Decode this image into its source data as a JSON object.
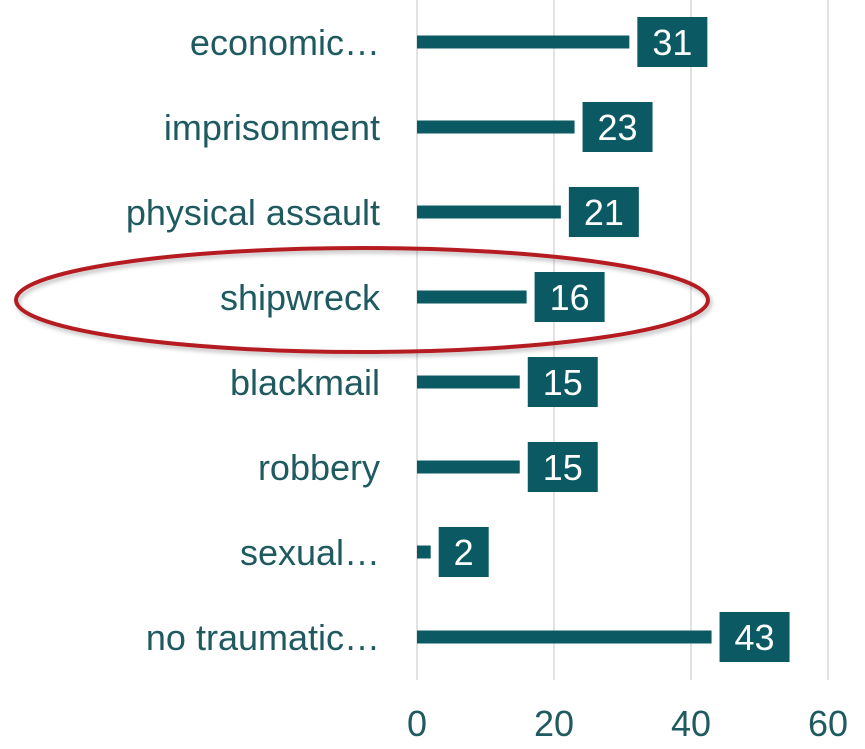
{
  "chart_data": {
    "type": "bar",
    "orientation": "horizontal",
    "categories": [
      "economic…",
      "imprisonment",
      "physical assault",
      "shipwreck",
      "blackmail",
      "robbery",
      "sexual…",
      "no traumatic…"
    ],
    "values": [
      31,
      23,
      21,
      16,
      15,
      15,
      2,
      43
    ],
    "xlim": [
      0,
      60
    ],
    "xticks": [
      "0",
      "20",
      "40",
      "60"
    ],
    "grid": true,
    "highlighted_category": "shipwreck",
    "colors": {
      "bar": "#0b5a63",
      "label_box": "#0b5a63",
      "text": "#1e5a60",
      "highlight_ellipse": "#b51f24"
    }
  }
}
